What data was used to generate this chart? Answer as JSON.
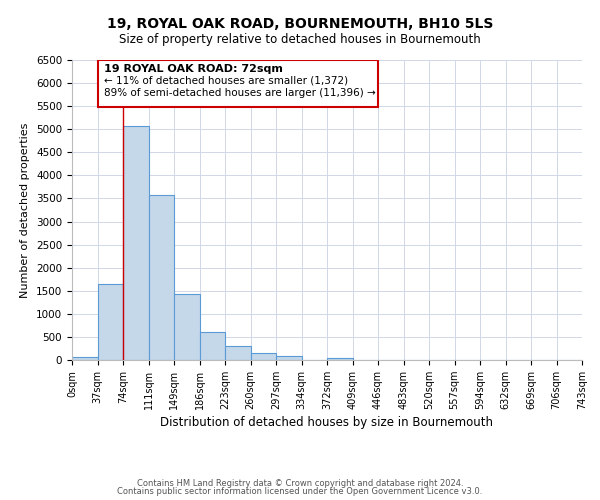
{
  "title": "19, ROYAL OAK ROAD, BOURNEMOUTH, BH10 5LS",
  "subtitle": "Size of property relative to detached houses in Bournemouth",
  "xlabel": "Distribution of detached houses by size in Bournemouth",
  "ylabel": "Number of detached properties",
  "bin_labels": [
    "0sqm",
    "37sqm",
    "74sqm",
    "111sqm",
    "149sqm",
    "186sqm",
    "223sqm",
    "260sqm",
    "297sqm",
    "334sqm",
    "372sqm",
    "409sqm",
    "446sqm",
    "483sqm",
    "520sqm",
    "557sqm",
    "594sqm",
    "632sqm",
    "669sqm",
    "706sqm",
    "743sqm"
  ],
  "bar_values": [
    60,
    1650,
    5080,
    3580,
    1420,
    610,
    300,
    155,
    80,
    0,
    50,
    0,
    0,
    0,
    0,
    0,
    0,
    0,
    0,
    0
  ],
  "bar_color": "#c5d8ea",
  "bar_edge_color": "#5b9bd5",
  "property_line_color": "#cc0000",
  "annotation_title": "19 ROYAL OAK ROAD: 72sqm",
  "annotation_line1": "← 11% of detached houses are smaller (1,372)",
  "annotation_line2": "89% of semi-detached houses are larger (11,396) →",
  "annotation_box_color": "#cc0000",
  "ylim": [
    0,
    6500
  ],
  "yticks": [
    0,
    500,
    1000,
    1500,
    2000,
    2500,
    3000,
    3500,
    4000,
    4500,
    5000,
    5500,
    6000,
    6500
  ],
  "footer1": "Contains HM Land Registry data © Crown copyright and database right 2024.",
  "footer2": "Contains public sector information licensed under the Open Government Licence v3.0.",
  "background_color": "#ffffff",
  "grid_color": "#d0d8e8"
}
